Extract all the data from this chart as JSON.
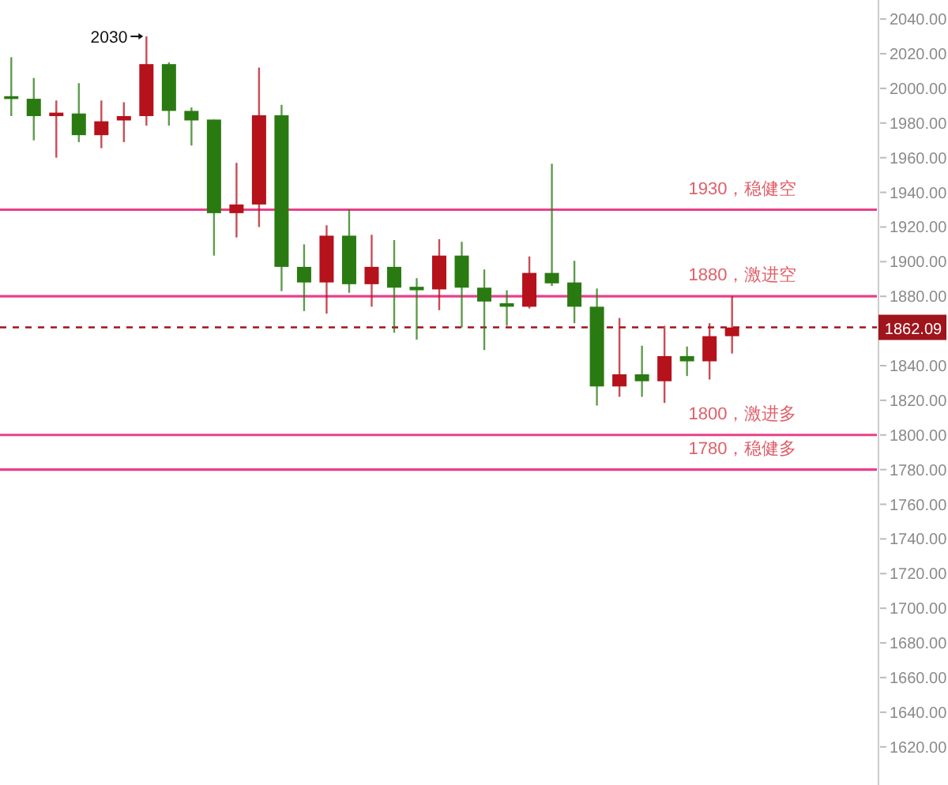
{
  "chart_data": {
    "type": "candlestick",
    "categories": [
      null,
      null,
      null,
      null,
      null,
      null,
      null,
      null,
      null,
      null,
      null,
      null,
      null,
      null,
      null,
      null,
      null,
      null,
      null,
      null,
      null,
      null,
      null,
      null,
      null,
      null,
      null,
      null,
      null,
      null,
      null,
      null,
      null,
      null,
      null,
      null,
      null,
      null,
      null
    ],
    "ohlc": [
      [
        1995.5,
        2018,
        1984,
        1994.5
      ],
      [
        1994,
        2006,
        1970,
        1984
      ],
      [
        1984,
        1993,
        1960,
        1986
      ],
      [
        1985.5,
        2003,
        1969,
        1973
      ],
      [
        1973,
        1993,
        1965.5,
        1981
      ],
      [
        1981.5,
        1992,
        1969,
        1984
      ],
      [
        1984,
        2030,
        1978.5,
        2014
      ],
      [
        2014,
        2015,
        1978.5,
        1987
      ],
      [
        1987,
        1989,
        1967,
        1981.5
      ],
      [
        1982,
        1982,
        1903.5,
        1928
      ],
      [
        1928,
        1957,
        1914,
        1933
      ],
      [
        1933,
        2012,
        1920,
        1984.5
      ],
      [
        1984.5,
        1990.5,
        1883,
        1897
      ],
      [
        1897,
        1910,
        1871.5,
        1888
      ],
      [
        1888,
        1921,
        1870,
        1915
      ],
      [
        1915,
        1930,
        1882,
        1887
      ],
      [
        1887,
        1915.5,
        1874,
        1897
      ],
      [
        1897,
        1912.5,
        1859,
        1885
      ],
      [
        1885.5,
        1890.5,
        1855,
        1883.5
      ],
      [
        1884,
        1913,
        1872,
        1903.5
      ],
      [
        1903.5,
        1911.5,
        1862,
        1885
      ],
      [
        1885,
        1895.5,
        1849,
        1877
      ],
      [
        1876,
        1883.5,
        1863,
        1874
      ],
      [
        1874,
        1903,
        1873,
        1893.5
      ],
      [
        1893.5,
        1956.5,
        1886,
        1887.5
      ],
      [
        1888,
        1900.5,
        1864.5,
        1874
      ],
      [
        1874,
        1884.5,
        1817,
        1828
      ],
      [
        1828,
        1867.5,
        1822,
        1835
      ],
      [
        1835,
        1851.5,
        1822,
        1831
      ],
      [
        1831,
        1863,
        1818.5,
        1845.5
      ],
      [
        1845.5,
        1851,
        1834,
        1842.5
      ],
      [
        1842.5,
        1864.5,
        1832,
        1857
      ],
      [
        1857,
        1880,
        1847,
        1862
      ],
      null,
      null,
      null,
      null,
      null,
      null
    ],
    "colors": [
      "#2a7a12",
      "#2a7a12",
      "#b5121b",
      "#2a7a12",
      "#b5121b",
      "#b5121b",
      "#b5121b",
      "#2a7a12",
      "#2a7a12",
      "#2a7a12",
      "#b5121b",
      "#b5121b",
      "#2a7a12",
      "#2a7a12",
      "#b5121b",
      "#2a7a12",
      "#b5121b",
      "#2a7a12",
      "#2a7a12",
      "#b5121b",
      "#2a7a12",
      "#2a7a12",
      "#2a7a12",
      "#b5121b",
      "#2a7a12",
      "#2a7a12",
      "#2a7a12",
      "#b5121b",
      "#2a7a12",
      "#b5121b",
      "#2a7a12",
      "#b5121b",
      "#b5121b",
      null,
      null,
      null,
      null,
      null,
      null
    ],
    "ylim": [
      1598,
      2051
    ],
    "yticks": [
      {
        "value": 2040,
        "label": "2040.00"
      },
      {
        "value": 2020,
        "label": "2020.00"
      },
      {
        "value": 2000,
        "label": "2000.00"
      },
      {
        "value": 1980,
        "label": "1980.00"
      },
      {
        "value": 1960,
        "label": "1960.00"
      },
      {
        "value": 1940,
        "label": "1940.00"
      },
      {
        "value": 1920,
        "label": "1920.00"
      },
      {
        "value": 1900,
        "label": "1900.00"
      },
      {
        "value": 1880,
        "label": "1880.00"
      },
      {
        "value": 1840,
        "label": "1840.00"
      },
      {
        "value": 1820,
        "label": "1820.00"
      },
      {
        "value": 1800,
        "label": "1800.00"
      },
      {
        "value": 1780,
        "label": "1780.00"
      },
      {
        "value": 1760,
        "label": "1760.00"
      },
      {
        "value": 1740,
        "label": "1740.00"
      },
      {
        "value": 1720,
        "label": "1720.00"
      },
      {
        "value": 1700,
        "label": "1700.00"
      },
      {
        "value": 1680,
        "label": "1680.00"
      },
      {
        "value": 1660,
        "label": "1660.00"
      },
      {
        "value": 1640,
        "label": "1640.00"
      },
      {
        "value": 1620,
        "label": "1620.00"
      }
    ],
    "tick_labels": "y",
    "ref_lines": [
      {
        "axis": "y",
        "value": 1930,
        "label": "1930，稳健空",
        "color": "#e8408a",
        "line_style": "solid"
      },
      {
        "axis": "y",
        "value": 1880,
        "label": "1880，激进空",
        "color": "#e8408a",
        "line_style": "solid"
      },
      {
        "axis": "y",
        "value": 1800,
        "label": "1800，激进多",
        "color": "#e8408a",
        "line_style": "solid"
      },
      {
        "axis": "y",
        "value": 1780,
        "label": "1780，稳健多",
        "color": "#e8408a",
        "line_style": "solid"
      },
      {
        "axis": "y",
        "value": 1862.09,
        "label": "1862.09",
        "color": "#a0141c",
        "line_style": "dashed"
      }
    ],
    "annotations": [
      "2030"
    ]
  }
}
